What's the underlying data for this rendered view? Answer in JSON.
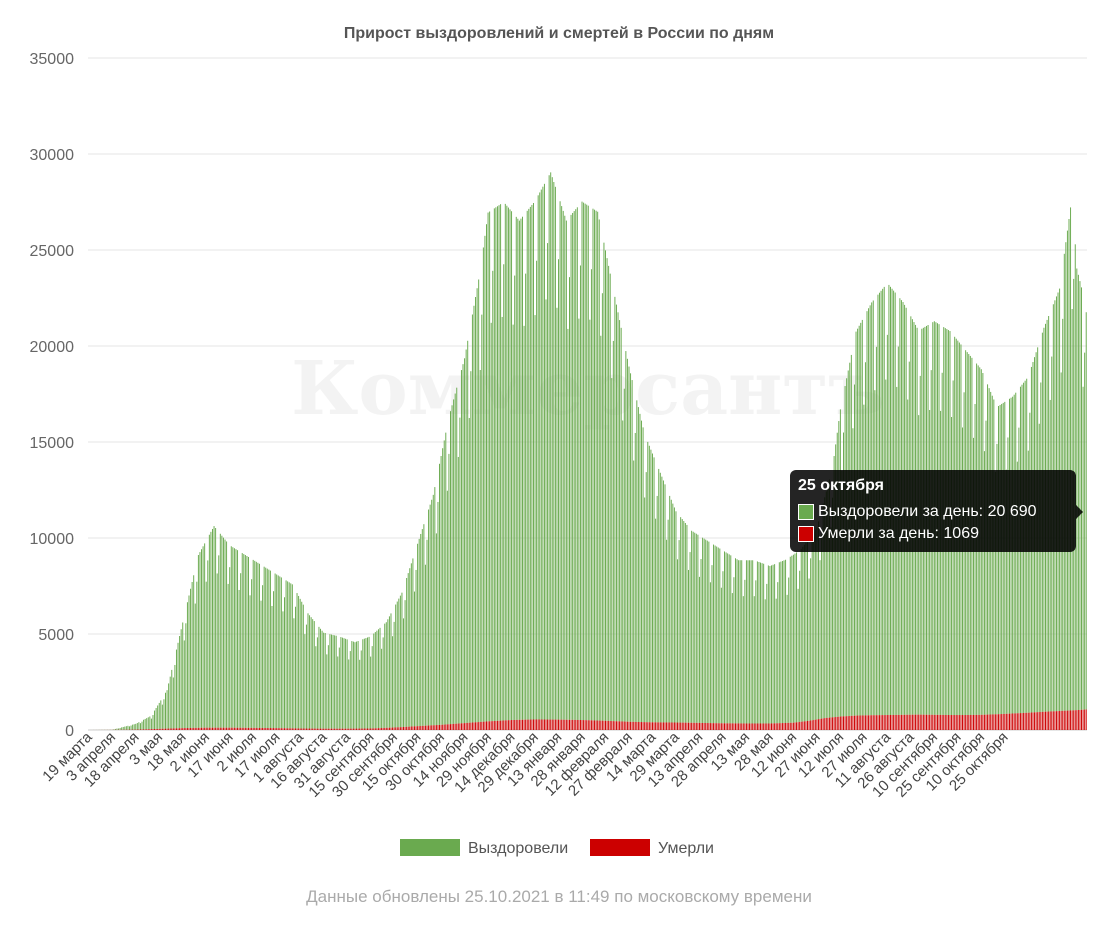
{
  "chart_data": {
    "type": "bar",
    "stacked": true,
    "title": "Прирост выздоровлений и смертей в России по дням",
    "ylim": [
      0,
      35000
    ],
    "yticks": [
      0,
      5000,
      10000,
      15000,
      20000,
      25000,
      30000,
      35000
    ],
    "grid": true,
    "legend_position": "bottom",
    "x_tick_labels": [
      "19 марта",
      "3 апреля",
      "18 апреля",
      "3 мая",
      "18 мая",
      "2 июня",
      "17 июня",
      "2 июля",
      "17 июля",
      "1 августа",
      "16 августа",
      "31 августа",
      "15 сентября",
      "30 сентября",
      "15 октября",
      "30 октября",
      "14 ноября",
      "29 ноября",
      "14 декабря",
      "29 декабря",
      "13 января",
      "28 января",
      "12 февраля",
      "27 февраля",
      "14 марта",
      "29 марта",
      "13 апреля",
      "28 апреля",
      "13 мая",
      "28 мая",
      "12 июня",
      "27 июня",
      "12 июля",
      "27 июля",
      "11 августа",
      "26 августа",
      "10 сентября",
      "25 сентября",
      "10 октября",
      "25 октября"
    ],
    "x_tick_step_days": 15,
    "series": [
      {
        "name": "Выздоровели",
        "color": "#6aaa4f",
        "anchors": [
          [
            0,
            0
          ],
          [
            15,
            10
          ],
          [
            30,
            300
          ],
          [
            40,
            700
          ],
          [
            50,
            2000
          ],
          [
            60,
            5500
          ],
          [
            70,
            9000
          ],
          [
            80,
            10500
          ],
          [
            90,
            9500
          ],
          [
            100,
            9000
          ],
          [
            110,
            8500
          ],
          [
            120,
            8000
          ],
          [
            130,
            7500
          ],
          [
            140,
            6000
          ],
          [
            150,
            5000
          ],
          [
            160,
            4800
          ],
          [
            170,
            4500
          ],
          [
            180,
            4800
          ],
          [
            190,
            5500
          ],
          [
            200,
            7000
          ],
          [
            210,
            9500
          ],
          [
            220,
            12000
          ],
          [
            230,
            16000
          ],
          [
            240,
            19000
          ],
          [
            250,
            23500
          ],
          [
            255,
            26500
          ],
          [
            265,
            27000
          ],
          [
            275,
            26000
          ],
          [
            285,
            27000
          ],
          [
            295,
            28500
          ],
          [
            305,
            26000
          ],
          [
            315,
            27000
          ],
          [
            325,
            26500
          ],
          [
            335,
            22500
          ],
          [
            345,
            18500
          ],
          [
            355,
            15000
          ],
          [
            365,
            13000
          ],
          [
            375,
            11000
          ],
          [
            385,
            10000
          ],
          [
            395,
            9500
          ],
          [
            405,
            9000
          ],
          [
            415,
            8500
          ],
          [
            425,
            8500
          ],
          [
            435,
            8200
          ],
          [
            445,
            8500
          ],
          [
            455,
            9000
          ],
          [
            465,
            10000
          ],
          [
            475,
            13000
          ],
          [
            480,
            16000
          ],
          [
            490,
            20000
          ],
          [
            500,
            21500
          ],
          [
            510,
            22500
          ],
          [
            520,
            21500
          ],
          [
            530,
            20000
          ],
          [
            540,
            20500
          ],
          [
            550,
            20000
          ],
          [
            560,
            19000
          ],
          [
            570,
            18000
          ],
          [
            580,
            16000
          ],
          [
            590,
            16500
          ],
          [
            600,
            17500
          ],
          [
            610,
            20000
          ],
          [
            620,
            22000
          ],
          [
            625,
            25000
          ],
          [
            628,
            26800
          ],
          [
            631,
            23000
          ],
          [
            634,
            22000
          ],
          [
            637,
            20690
          ]
        ]
      },
      {
        "name": "Умерли",
        "color": "#cc0000",
        "anchors": [
          [
            0,
            0
          ],
          [
            15,
            5
          ],
          [
            30,
            20
          ],
          [
            45,
            60
          ],
          [
            60,
            100
          ],
          [
            75,
            120
          ],
          [
            90,
            120
          ],
          [
            105,
            110
          ],
          [
            120,
            100
          ],
          [
            135,
            80
          ],
          [
            150,
            70
          ],
          [
            165,
            70
          ],
          [
            180,
            80
          ],
          [
            195,
            130
          ],
          [
            210,
            200
          ],
          [
            225,
            270
          ],
          [
            240,
            360
          ],
          [
            255,
            450
          ],
          [
            270,
            520
          ],
          [
            285,
            550
          ],
          [
            300,
            540
          ],
          [
            315,
            520
          ],
          [
            330,
            480
          ],
          [
            345,
            430
          ],
          [
            360,
            400
          ],
          [
            375,
            390
          ],
          [
            390,
            370
          ],
          [
            405,
            350
          ],
          [
            420,
            340
          ],
          [
            435,
            340
          ],
          [
            450,
            380
          ],
          [
            460,
            480
          ],
          [
            470,
            620
          ],
          [
            480,
            700
          ],
          [
            490,
            750
          ],
          [
            500,
            770
          ],
          [
            510,
            780
          ],
          [
            520,
            790
          ],
          [
            530,
            800
          ],
          [
            540,
            790
          ],
          [
            550,
            780
          ],
          [
            560,
            780
          ],
          [
            570,
            790
          ],
          [
            580,
            820
          ],
          [
            590,
            860
          ],
          [
            600,
            900
          ],
          [
            610,
            950
          ],
          [
            620,
            990
          ],
          [
            630,
            1030
          ],
          [
            637,
            1069
          ]
        ]
      }
    ]
  },
  "tooltip": {
    "title": "25 октября",
    "recovered_text": "Выздоровели за день: 20 690",
    "deaths_text": "Умерли за день: 1069"
  },
  "watermark": "Коммерсантъ",
  "footer": "Данные обновлены 25.10.2021 в 11:49 по московскому времени"
}
